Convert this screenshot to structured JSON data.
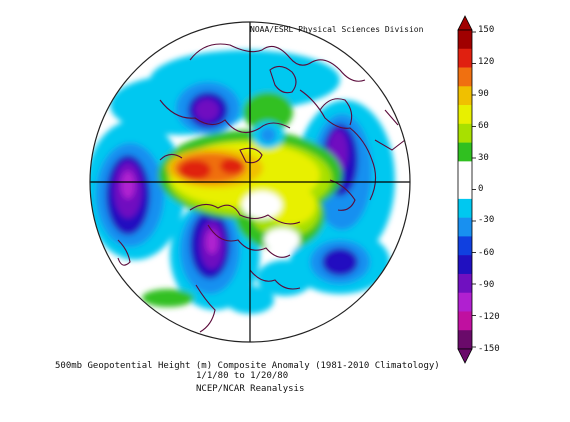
{
  "credit": "NOAA/ESRL Physical Sciences Division",
  "caption": {
    "line1": "500mb Geopotential Height (m) Composite Anomaly (1981-2010 Climatology)",
    "line2": "1/1/80  to 1/20/80",
    "line3": "NCEP/NCAR Reanalysis"
  },
  "colorbar": {
    "labels": [
      "150",
      "120",
      "90",
      "60",
      "30",
      "0",
      "-30",
      "-60",
      "-90",
      "-120",
      "-150"
    ],
    "colors": [
      "#a00000",
      "#e02010",
      "#f07010",
      "#f0c000",
      "#e8f000",
      "#a8e000",
      "#30c020",
      "#ffffff",
      "#ffffff",
      "#00c8f0",
      "#1890f0",
      "#1040e0",
      "#2010c0",
      "#7010c0",
      "#b020d0",
      "#c010a0",
      "#6a0a6a"
    ]
  },
  "colors": {
    "coast": "#5a0a3a",
    "grid": "#000000"
  }
}
